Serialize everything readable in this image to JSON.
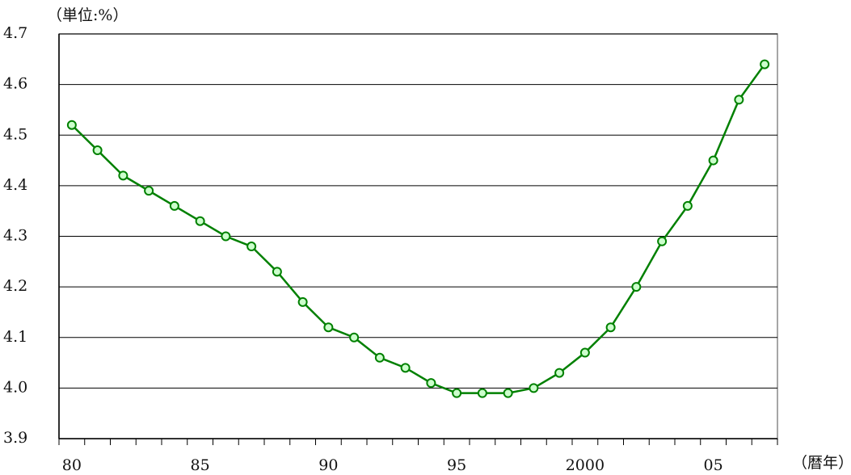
{
  "chart_data": {
    "type": "line",
    "y_label": "（単位:%）",
    "x_label": "（暦年）",
    "categories": [
      "80",
      null,
      null,
      null,
      null,
      "85",
      null,
      null,
      null,
      null,
      "90",
      null,
      null,
      null,
      null,
      "95",
      null,
      null,
      null,
      null,
      "2000",
      null,
      null,
      null,
      null,
      "05",
      null,
      null
    ],
    "values": [
      4.52,
      4.47,
      4.42,
      4.39,
      4.36,
      4.33,
      4.3,
      4.28,
      4.23,
      4.17,
      4.12,
      4.1,
      4.06,
      4.04,
      4.01,
      3.99,
      3.99,
      3.99,
      4.0,
      4.03,
      4.07,
      4.12,
      4.2,
      4.29,
      4.36,
      4.45,
      4.57,
      4.64
    ],
    "color": "#008000",
    "marker_fill": "#ccffcc",
    "ylim": [
      3.9,
      4.7
    ],
    "yticks": [
      3.9,
      {
        "value": 4,
        "label": "4.0"
      },
      4.1,
      4.2,
      4.3,
      4.4,
      4.5,
      4.6,
      4.7
    ],
    "grid": true
  }
}
